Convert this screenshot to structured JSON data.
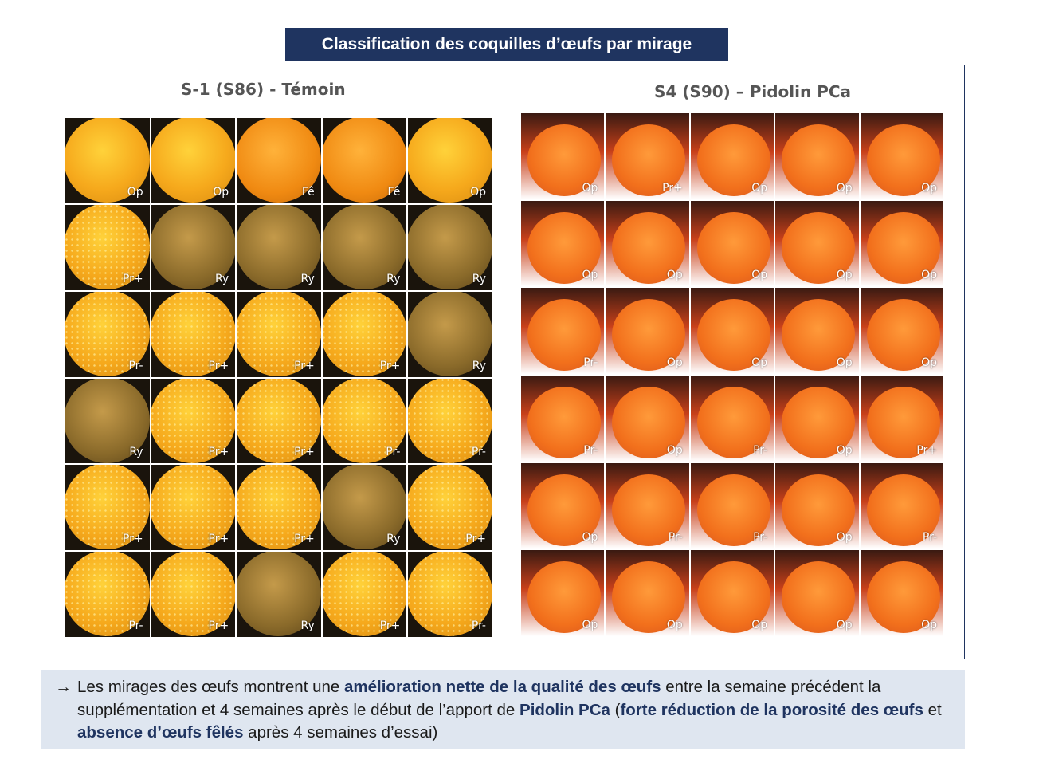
{
  "title": "Classification des coquilles d’œufs par mirage",
  "panels": [
    {
      "title": "S-1 (S86) - Témoin",
      "rows": [
        [
          "Op",
          "Op",
          "Fê",
          "Fê",
          "Op"
        ],
        [
          "Pr+",
          "Ry",
          "Ry",
          "Ry",
          "Ry"
        ],
        [
          "Pr-",
          "Pr+",
          "Pr+",
          "Pr+",
          "Ry"
        ],
        [
          "Ry",
          "Pr+",
          "Pr+",
          "Pr-",
          "Pr-"
        ],
        [
          "Pr+",
          "Pr+",
          "Pr+",
          "Ry",
          "Pr+"
        ],
        [
          "Pr-",
          "Pr+",
          "Ry",
          "Pr+",
          "Pr-"
        ]
      ]
    },
    {
      "title": "S4 (S90) – Pidolin PCa",
      "rows": [
        [
          "Op",
          "Pr+",
          "Op",
          "Op",
          "Op"
        ],
        [
          "Op",
          "Op",
          "Op",
          "Op",
          "Op"
        ],
        [
          "Pr-",
          "Op",
          "Op",
          "Op",
          "Op"
        ],
        [
          "Pr-",
          "Op",
          "Pr-",
          "Op",
          "Pr+"
        ],
        [
          "Op",
          "Pr-",
          "Pr-",
          "Op",
          "Pr-"
        ],
        [
          "Op",
          "Op",
          "Op",
          "Op",
          "Op"
        ]
      ]
    }
  ],
  "info": {
    "arrow": "→",
    "t1": "Les mirages des œufs montrent une ",
    "b1": "amélioration nette de la qualité des œufs",
    "t2": " entre la semaine précédent la supplémentation et 4 semaines après le début de l’apport de ",
    "b2": "Pidolin PCa",
    "t3": " (",
    "b3": "forte réduction de la porosité des œufs",
    "t4": " et ",
    "b4": "absence d’œufs fêlés",
    "t5": " après 4 semaines d’essai)"
  },
  "colors": {
    "banner": "#1f3460",
    "info_bg": "#dfe6f0"
  }
}
